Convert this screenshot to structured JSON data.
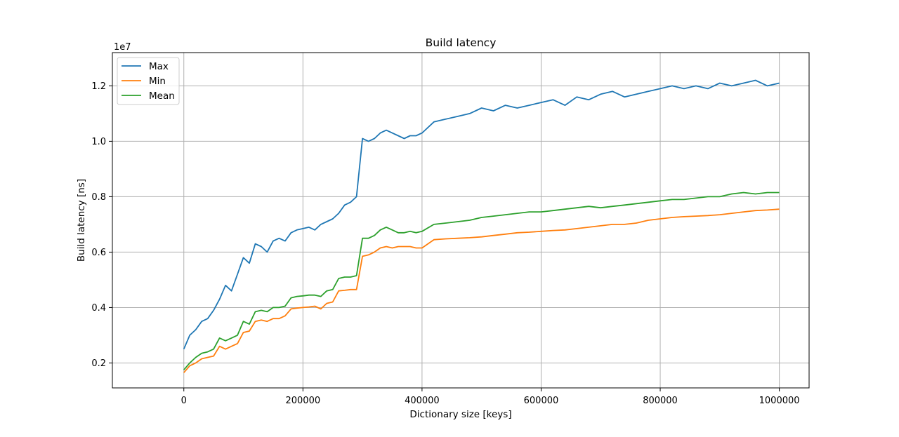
{
  "chart_data": {
    "type": "line",
    "title": "Build latency",
    "xlabel": "Dictionary size [keys]",
    "ylabel": "Build latency [ns]",
    "y_scale_label": "1e7",
    "xlim": [
      -120000,
      1050000
    ],
    "ylim": [
      1.1,
      13.2
    ],
    "x_ticks": [
      0,
      200000,
      400000,
      600000,
      800000,
      1000000
    ],
    "x_tick_labels": [
      "0",
      "200000",
      "400000",
      "600000",
      "800000",
      "1000000"
    ],
    "y_ticks": [
      2,
      4,
      6,
      8,
      10,
      12
    ],
    "y_tick_labels": [
      "0.2",
      "0.4",
      "0.6",
      "0.8",
      "1.0",
      "1.2"
    ],
    "grid": true,
    "legend_position": "top-left",
    "x": [
      0,
      10000,
      20000,
      30000,
      40000,
      50000,
      60000,
      70000,
      80000,
      90000,
      100000,
      110000,
      120000,
      130000,
      140000,
      150000,
      160000,
      170000,
      180000,
      190000,
      200000,
      210000,
      220000,
      230000,
      240000,
      250000,
      260000,
      270000,
      280000,
      290000,
      300000,
      310000,
      320000,
      330000,
      340000,
      350000,
      360000,
      370000,
      380000,
      390000,
      400000,
      420000,
      440000,
      460000,
      480000,
      500000,
      520000,
      540000,
      560000,
      580000,
      600000,
      620000,
      640000,
      660000,
      680000,
      700000,
      720000,
      740000,
      760000,
      780000,
      800000,
      820000,
      840000,
      860000,
      880000,
      900000,
      920000,
      940000,
      960000,
      980000,
      1000000
    ],
    "series": [
      {
        "name": "Max",
        "color": "#1f77b4",
        "values": [
          2.5,
          3.0,
          3.2,
          3.5,
          3.6,
          3.9,
          4.3,
          4.8,
          4.6,
          5.2,
          5.8,
          5.6,
          6.3,
          6.2,
          6.0,
          6.4,
          6.5,
          6.4,
          6.7,
          6.8,
          6.85,
          6.9,
          6.8,
          7.0,
          7.1,
          7.2,
          7.4,
          7.7,
          7.8,
          8.0,
          10.1,
          10.0,
          10.1,
          10.3,
          10.4,
          10.3,
          10.2,
          10.1,
          10.2,
          10.2,
          10.3,
          10.7,
          10.8,
          10.9,
          11.0,
          11.2,
          11.1,
          11.3,
          11.2,
          11.3,
          11.4,
          11.5,
          11.3,
          11.6,
          11.5,
          11.7,
          11.8,
          11.6,
          11.7,
          11.8,
          11.9,
          12.0,
          11.9,
          12.0,
          11.9,
          12.1,
          12.0,
          12.1,
          12.2,
          12.0,
          12.1
        ]
      },
      {
        "name": "Min",
        "color": "#ff7f0e",
        "values": [
          1.65,
          1.9,
          2.0,
          2.15,
          2.2,
          2.25,
          2.6,
          2.5,
          2.6,
          2.7,
          3.1,
          3.15,
          3.5,
          3.55,
          3.5,
          3.6,
          3.6,
          3.7,
          3.95,
          3.98,
          4.0,
          4.02,
          4.05,
          3.95,
          4.15,
          4.2,
          4.6,
          4.62,
          4.65,
          4.65,
          5.85,
          5.9,
          6.0,
          6.15,
          6.2,
          6.15,
          6.2,
          6.2,
          6.2,
          6.15,
          6.15,
          6.45,
          6.48,
          6.5,
          6.52,
          6.55,
          6.6,
          6.65,
          6.7,
          6.72,
          6.75,
          6.78,
          6.8,
          6.85,
          6.9,
          6.95,
          7.0,
          7.0,
          7.05,
          7.15,
          7.2,
          7.25,
          7.28,
          7.3,
          7.32,
          7.35,
          7.4,
          7.45,
          7.5,
          7.52,
          7.55
        ]
      },
      {
        "name": "Mean",
        "color": "#2ca02c",
        "values": [
          1.75,
          2.0,
          2.2,
          2.35,
          2.4,
          2.5,
          2.9,
          2.8,
          2.9,
          3.0,
          3.5,
          3.4,
          3.85,
          3.9,
          3.85,
          4.0,
          4.0,
          4.05,
          4.35,
          4.4,
          4.42,
          4.45,
          4.45,
          4.4,
          4.6,
          4.65,
          5.05,
          5.1,
          5.1,
          5.15,
          6.5,
          6.5,
          6.6,
          6.8,
          6.9,
          6.8,
          6.7,
          6.7,
          6.75,
          6.7,
          6.75,
          7.0,
          7.05,
          7.1,
          7.15,
          7.25,
          7.3,
          7.35,
          7.4,
          7.45,
          7.45,
          7.5,
          7.55,
          7.6,
          7.65,
          7.6,
          7.65,
          7.7,
          7.75,
          7.8,
          7.85,
          7.9,
          7.9,
          7.95,
          8.0,
          8.0,
          8.1,
          8.15,
          8.1,
          8.15,
          8.15
        ]
      }
    ]
  }
}
